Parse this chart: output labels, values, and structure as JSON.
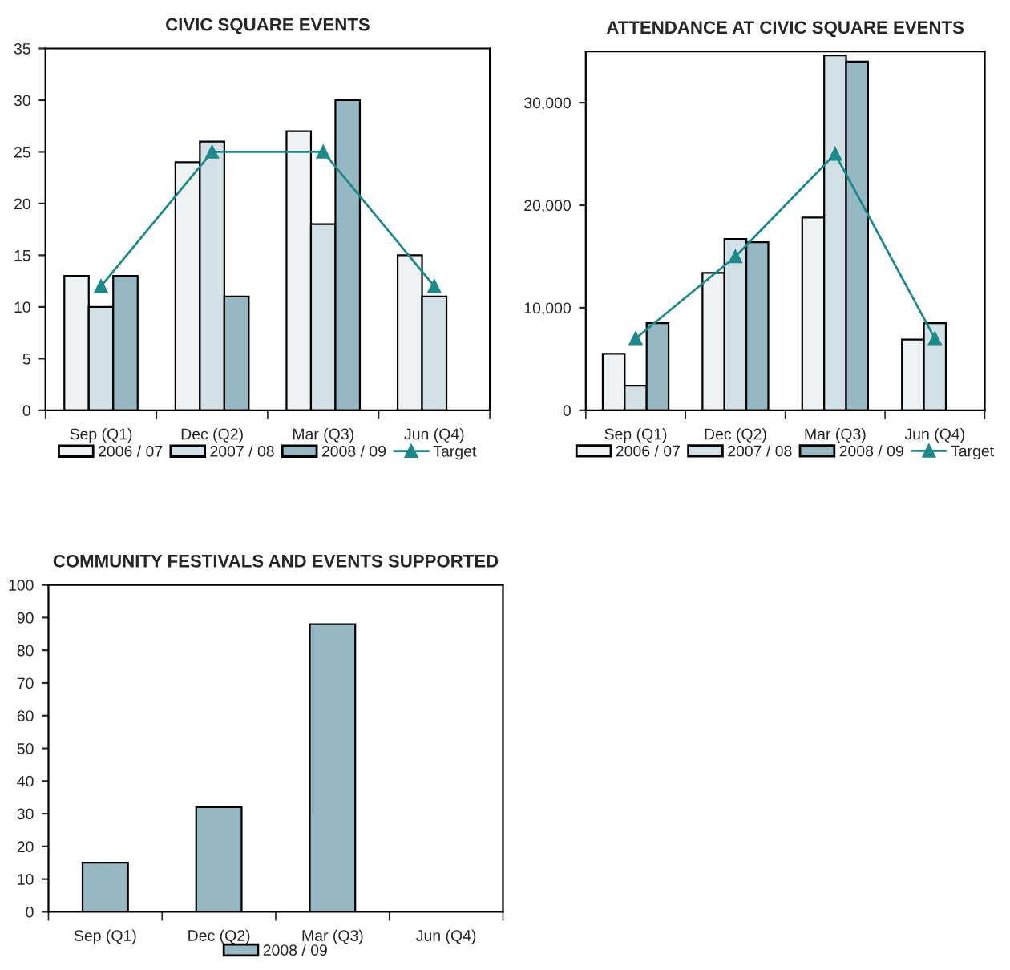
{
  "chart_data": [
    {
      "type": "bar",
      "title": "CIVIC SQUARE EVENTS",
      "categories": [
        "Sep (Q1)",
        "Dec (Q2)",
        "Mar (Q3)",
        "Jun (Q4)"
      ],
      "series": [
        {
          "name": "2006 / 07",
          "color": "#eef2f5",
          "values": [
            13,
            24,
            27,
            15
          ]
        },
        {
          "name": "2007 / 08",
          "color": "#d3e0e5",
          "values": [
            10,
            26,
            18,
            11
          ]
        },
        {
          "name": "2008 / 09",
          "color": "#95b8c3",
          "values": [
            13,
            11,
            30,
            null
          ]
        },
        {
          "name": "Target",
          "type": "line",
          "marker": "triangle",
          "color": "#1a8a8a",
          "values": [
            12,
            25,
            25,
            12
          ]
        }
      ],
      "ylim": [
        0,
        35
      ],
      "yticks": [
        0,
        5,
        10,
        15,
        20,
        25,
        30,
        35
      ],
      "grid": false,
      "legend": "bottom"
    },
    {
      "type": "bar",
      "title": "ATTENDANCE AT CIVIC SQUARE EVENTS",
      "categories": [
        "Sep (Q1)",
        "Dec (Q2)",
        "Mar (Q3)",
        "Jun (Q4)"
      ],
      "series": [
        {
          "name": "2006 / 07",
          "color": "#eef2f5",
          "values": [
            5500,
            13400,
            18800,
            6900
          ]
        },
        {
          "name": "2007 / 08",
          "color": "#d3e0e5",
          "values": [
            2400,
            16700,
            34600,
            8500
          ]
        },
        {
          "name": "2008 / 09",
          "color": "#95b8c3",
          "values": [
            8500,
            16400,
            34000,
            null
          ]
        },
        {
          "name": "Target",
          "type": "line",
          "marker": "triangle",
          "color": "#1a8a8a",
          "values": [
            7000,
            15000,
            25000,
            7000
          ]
        }
      ],
      "ylim": [
        0,
        35000
      ],
      "yticks": [
        0,
        {
          "value": 10000,
          "label": "10,000"
        },
        {
          "value": 20000,
          "label": "20,000"
        },
        {
          "value": 30000,
          "label": "30,000"
        }
      ],
      "grid": false,
      "legend": "bottom"
    },
    {
      "type": "bar",
      "title": "COMMUNITY FESTIVALS AND EVENTS SUPPORTED",
      "categories": [
        "Sep (Q1)",
        "Dec (Q2)",
        "Mar (Q3)",
        "Jun (Q4)"
      ],
      "series": [
        {
          "name": "2008 / 09",
          "color": "#95b8c3",
          "values": [
            15,
            32,
            88,
            null
          ]
        }
      ],
      "ylim": [
        0,
        100
      ],
      "yticks": [
        0,
        10,
        20,
        30,
        40,
        50,
        60,
        70,
        80,
        90,
        100
      ],
      "grid": false,
      "legend": "bottom"
    }
  ]
}
